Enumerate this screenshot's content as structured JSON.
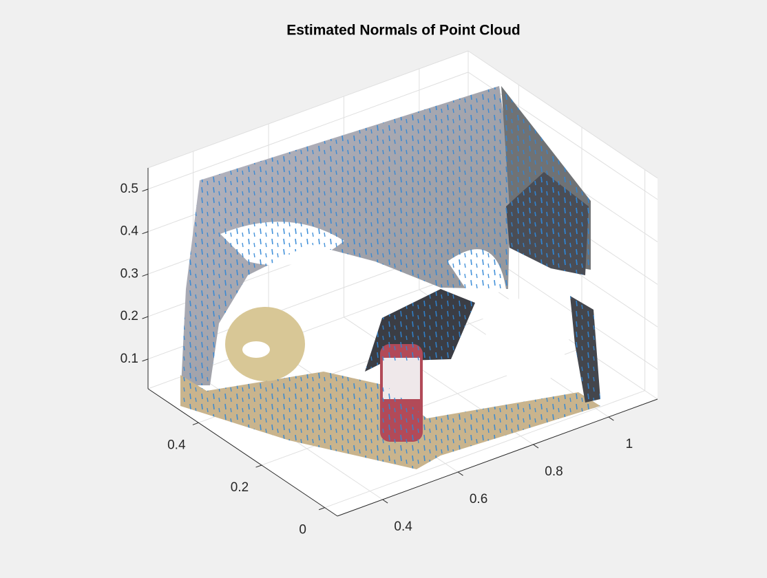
{
  "chart_data": {
    "type": "scatter3",
    "title": "Estimated Normals of Point Cloud",
    "xlim": [
      -0.04,
      0.56
    ],
    "ylim": [
      0.28,
      1.13
    ],
    "zlim": [
      0.03,
      0.55
    ],
    "xticks": [
      0,
      0.2,
      0.4
    ],
    "yticks": [
      0.4,
      0.6,
      0.8,
      1
    ],
    "zticks": [
      0.1,
      0.2,
      0.3,
      0.4,
      0.5
    ],
    "grid": true
  }
}
